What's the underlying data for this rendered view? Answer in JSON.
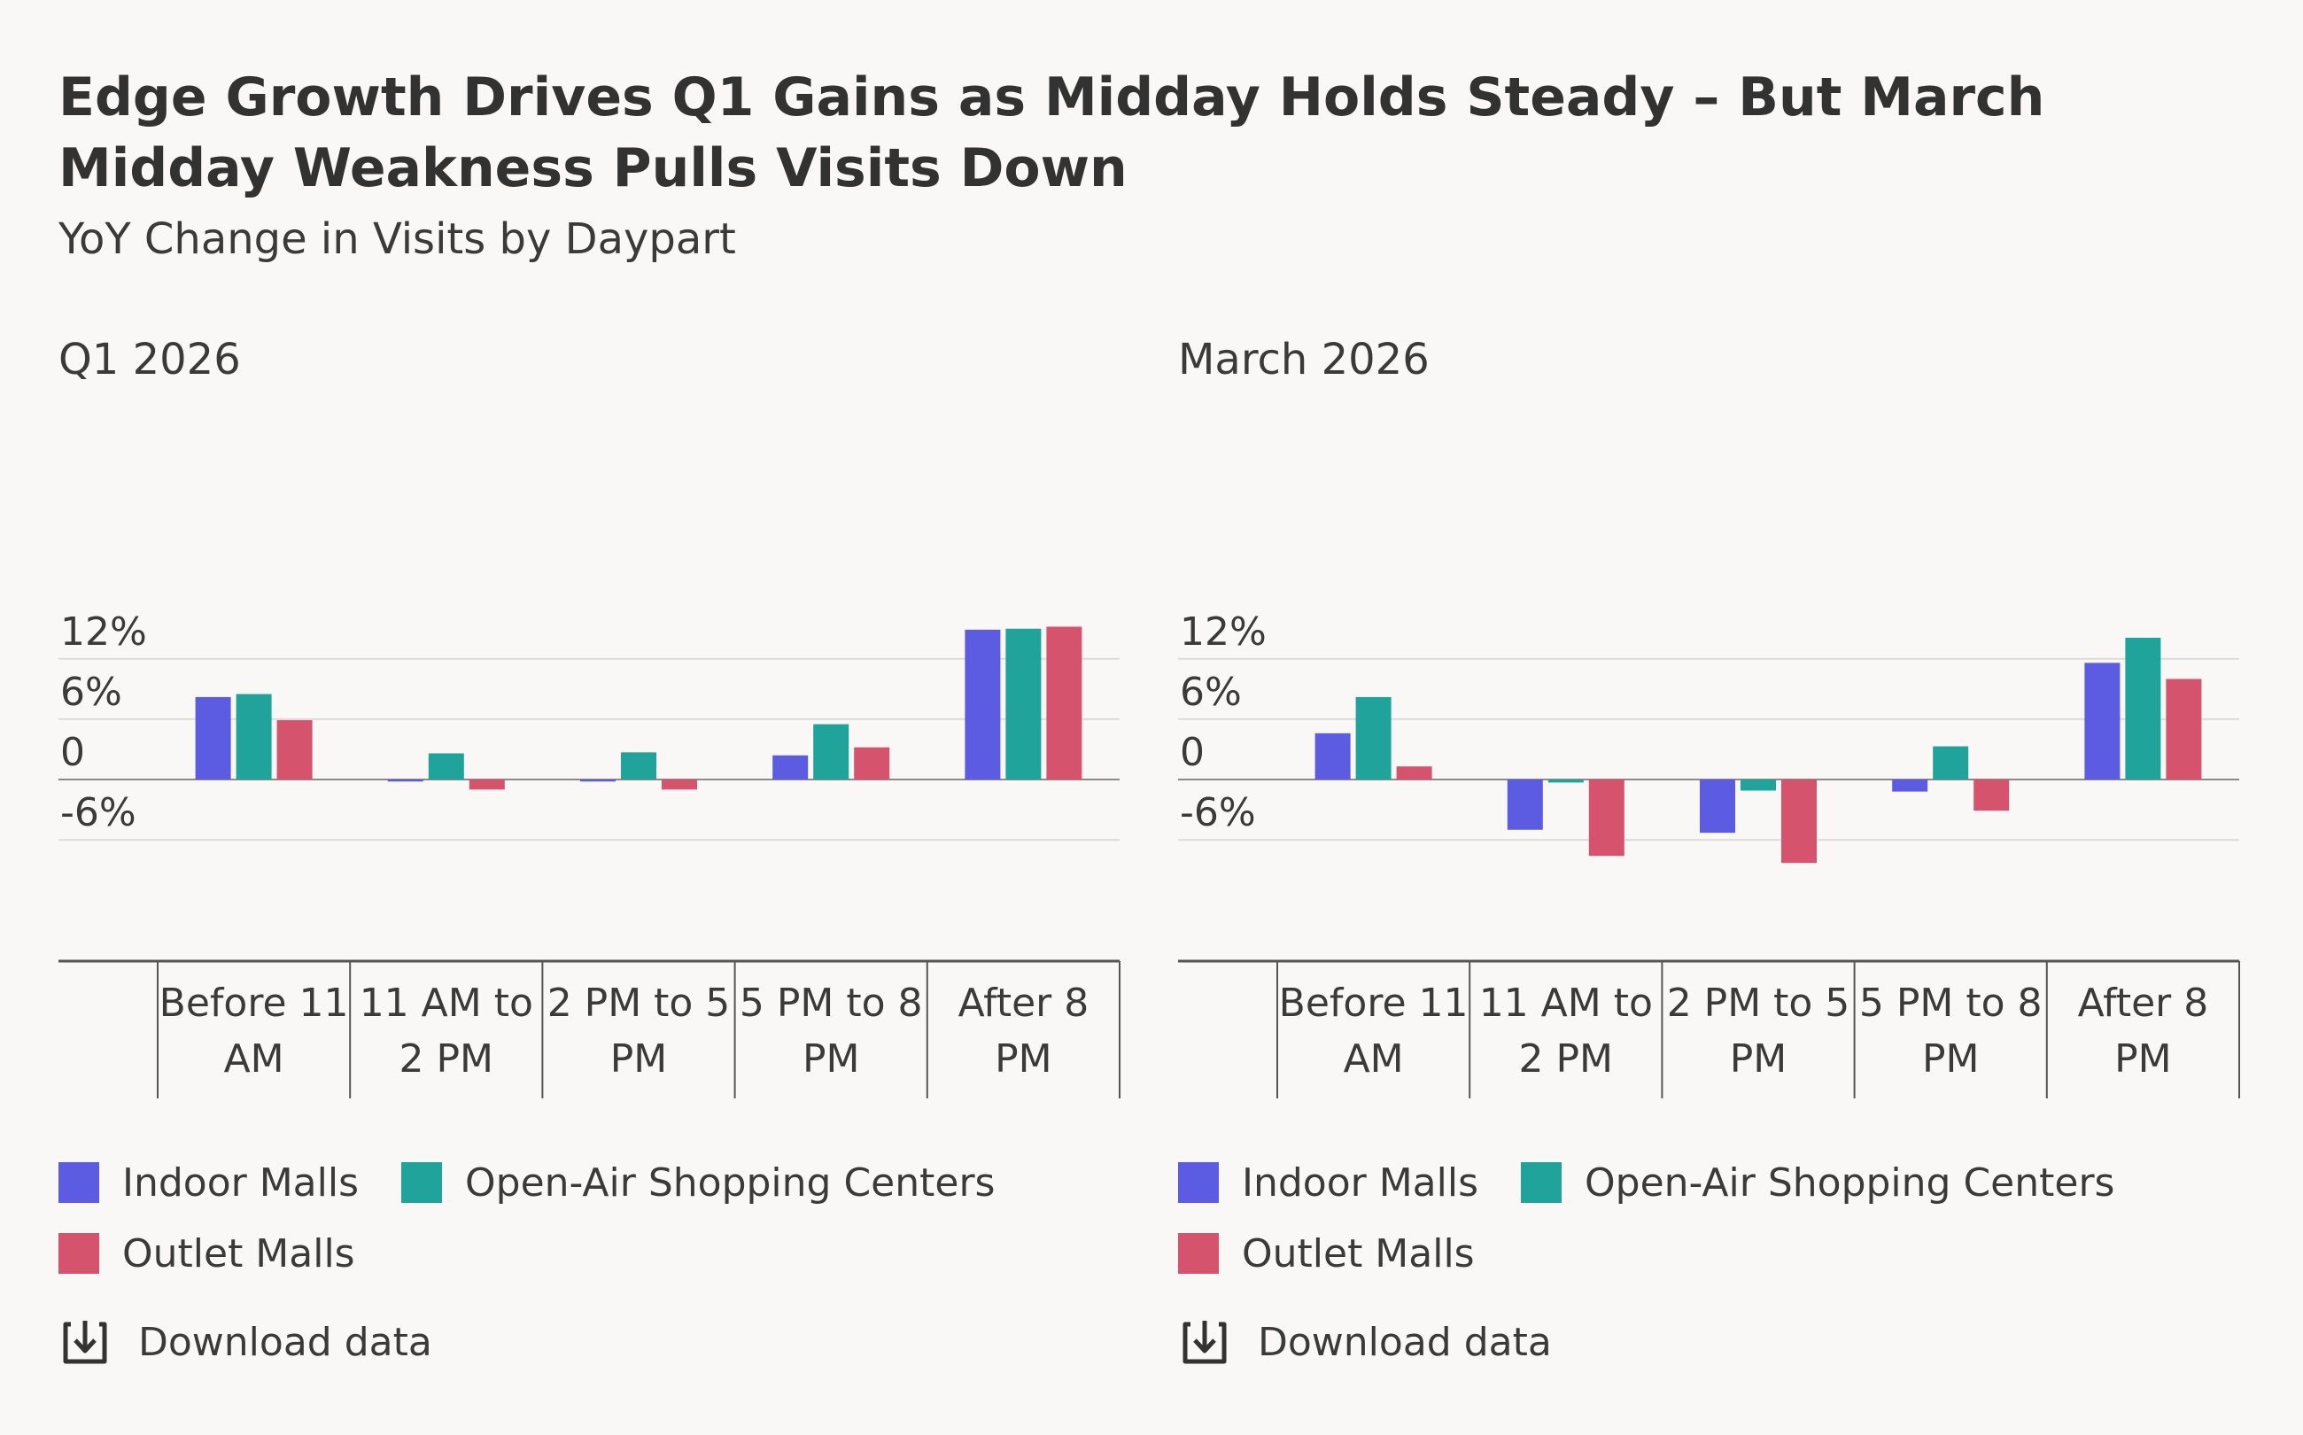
{
  "header": {
    "title": "Edge Growth Drives Q1 Gains as Midday Holds Steady – But March Midday Weakness Pulls Visits Down",
    "subtitle": "YoY Change in Visits by Daypart"
  },
  "colors": {
    "indoor": "#5b5ce2",
    "openair": "#1fa39b",
    "outlet": "#d6536d",
    "grid": "#dcdcdc",
    "axis": "#555555",
    "text": "#3a3a3a"
  },
  "legend": {
    "items": [
      {
        "label": "Indoor Malls",
        "color": "#5b5ce2"
      },
      {
        "label": "Open-Air Shopping Centers",
        "color": "#1fa39b"
      },
      {
        "label": "Outlet Malls",
        "color": "#d6536d"
      }
    ]
  },
  "download": {
    "label": "Download data",
    "icon": "download-icon"
  },
  "chart_data": [
    {
      "type": "bar",
      "title": "Q1 2026",
      "categories": [
        [
          "Before 11",
          "AM"
        ],
        [
          "11 AM to",
          "2 PM"
        ],
        [
          "2 PM to 5",
          "PM"
        ],
        [
          "5 PM to 8",
          "PM"
        ],
        [
          "After 8",
          "PM"
        ]
      ],
      "series": [
        {
          "name": "Indoor Malls",
          "values": [
            8.2,
            -0.2,
            -0.2,
            2.4,
            14.9
          ]
        },
        {
          "name": "Open-Air Shopping Centers",
          "values": [
            8.5,
            2.6,
            2.7,
            5.5,
            15.0
          ]
        },
        {
          "name": "Outlet Malls",
          "values": [
            5.9,
            -1.0,
            -1.0,
            3.2,
            15.2
          ]
        }
      ],
      "yticks": [
        12,
        6,
        0,
        -6
      ],
      "ytick_labels": [
        "12%",
        "6%",
        "0",
        "-6%"
      ],
      "ylim": [
        -11,
        17
      ],
      "grid": true,
      "legend_position": "bottom"
    },
    {
      "type": "bar",
      "title": "March 2026",
      "categories": [
        [
          "Before 11",
          "AM"
        ],
        [
          "11 AM to",
          "2 PM"
        ],
        [
          "2 PM to 5",
          "PM"
        ],
        [
          "5 PM to 8",
          "PM"
        ],
        [
          "After 8",
          "PM"
        ]
      ],
      "series": [
        {
          "name": "Indoor Malls",
          "values": [
            4.6,
            -5.0,
            -5.3,
            -1.2,
            11.6
          ]
        },
        {
          "name": "Open-Air Shopping Centers",
          "values": [
            8.2,
            -0.3,
            -1.1,
            3.3,
            14.1
          ]
        },
        {
          "name": "Outlet Malls",
          "values": [
            1.3,
            -7.6,
            -8.3,
            -3.1,
            10.0
          ]
        }
      ],
      "yticks": [
        12,
        6,
        0,
        -6
      ],
      "ytick_labels": [
        "12%",
        "6%",
        "0",
        "-6%"
      ],
      "ylim": [
        -11,
        17
      ],
      "grid": true,
      "legend_position": "bottom"
    }
  ]
}
